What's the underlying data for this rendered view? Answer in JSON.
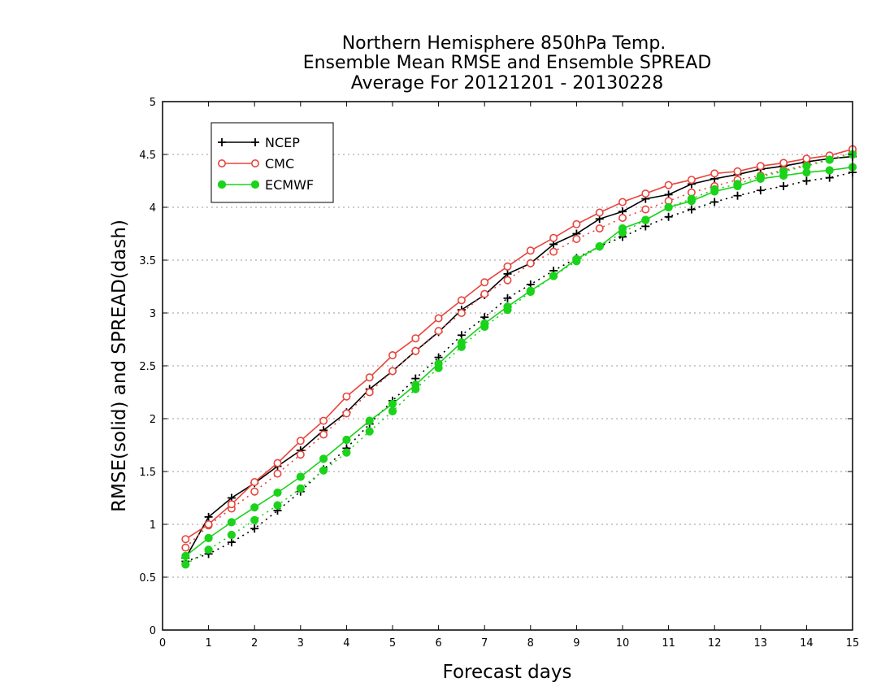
{
  "chart_data": {
    "type": "line",
    "title": [
      "Northern Hemisphere 850hPa Temp.",
      "Ensemble Mean RMSE and Ensemble SPREAD",
      "Average For 20121201 - 20130228"
    ],
    "xlabel": "Forecast days",
    "ylabel": "RMSE(solid) and SPREAD(dash)",
    "xlim": [
      0,
      15
    ],
    "ylim": [
      0,
      5
    ],
    "xticks": [
      "0",
      "1",
      "2",
      "3",
      "4",
      "5",
      "6",
      "7",
      "8",
      "9",
      "10",
      "11",
      "12",
      "13",
      "14",
      "15"
    ],
    "yticks": [
      "0",
      "0.5",
      "1",
      "1.5",
      "2",
      "2.5",
      "3",
      "3.5",
      "4",
      "4.5",
      "5"
    ],
    "grid": "horizontal dotted",
    "legend_position": "top-left",
    "x": [
      0.5,
      1,
      1.5,
      2,
      2.5,
      3,
      3.5,
      4,
      4.5,
      5,
      5.5,
      6,
      6.5,
      7,
      7.5,
      8,
      8.5,
      9,
      9.5,
      10,
      10.5,
      11,
      11.5,
      12,
      12.5,
      13,
      13.5,
      14,
      14.5,
      15
    ],
    "series": [
      {
        "name": "NCEP",
        "color": "#000000",
        "marker": "plus",
        "rmse": [
          0.68,
          1.07,
          1.25,
          1.39,
          1.55,
          1.7,
          1.89,
          2.06,
          2.28,
          2.45,
          2.64,
          2.82,
          3.03,
          3.17,
          3.37,
          3.47,
          3.65,
          3.75,
          3.89,
          3.96,
          4.08,
          4.12,
          4.22,
          4.27,
          4.31,
          4.36,
          4.39,
          4.43,
          4.46,
          4.48
        ],
        "spread": [
          0.65,
          0.72,
          0.83,
          0.96,
          1.13,
          1.31,
          1.52,
          1.72,
          1.95,
          2.17,
          2.38,
          2.58,
          2.79,
          2.96,
          3.14,
          3.27,
          3.4,
          3.52,
          3.63,
          3.72,
          3.82,
          3.91,
          3.98,
          4.05,
          4.11,
          4.16,
          4.2,
          4.25,
          4.28,
          4.33
        ]
      },
      {
        "name": "CMC",
        "color": "#e8453c",
        "marker": "circle",
        "rmse": [
          0.86,
          1.0,
          1.19,
          1.4,
          1.58,
          1.79,
          1.98,
          2.21,
          2.39,
          2.6,
          2.76,
          2.95,
          3.12,
          3.29,
          3.44,
          3.59,
          3.71,
          3.84,
          3.95,
          4.05,
          4.13,
          4.21,
          4.26,
          4.32,
          4.34,
          4.39,
          4.42,
          4.46,
          4.49,
          4.55
        ],
        "spread": [
          0.78,
          0.99,
          1.15,
          1.31,
          1.48,
          1.66,
          1.85,
          2.05,
          2.25,
          2.45,
          2.64,
          2.83,
          3.0,
          3.18,
          3.31,
          3.47,
          3.58,
          3.7,
          3.8,
          3.9,
          3.98,
          4.06,
          4.14,
          4.2,
          4.26,
          4.3,
          4.35,
          4.4,
          4.45,
          4.52
        ]
      },
      {
        "name": "ECMWF",
        "color": "#1ad31a",
        "marker": "filled-circle",
        "rmse": [
          0.7,
          0.87,
          1.02,
          1.16,
          1.3,
          1.45,
          1.62,
          1.8,
          1.98,
          2.14,
          2.32,
          2.52,
          2.72,
          2.9,
          3.06,
          3.21,
          3.35,
          3.51,
          3.63,
          3.8,
          3.88,
          4.0,
          4.06,
          4.15,
          4.2,
          4.27,
          4.3,
          4.33,
          4.35,
          4.38
        ],
        "spread": [
          0.62,
          0.76,
          0.9,
          1.04,
          1.18,
          1.34,
          1.51,
          1.68,
          1.88,
          2.07,
          2.28,
          2.48,
          2.68,
          2.87,
          3.03,
          3.2,
          3.35,
          3.49,
          3.63,
          3.76,
          3.88,
          4.0,
          4.08,
          4.17,
          4.22,
          4.29,
          4.34,
          4.39,
          4.45,
          4.5
        ]
      }
    ]
  }
}
